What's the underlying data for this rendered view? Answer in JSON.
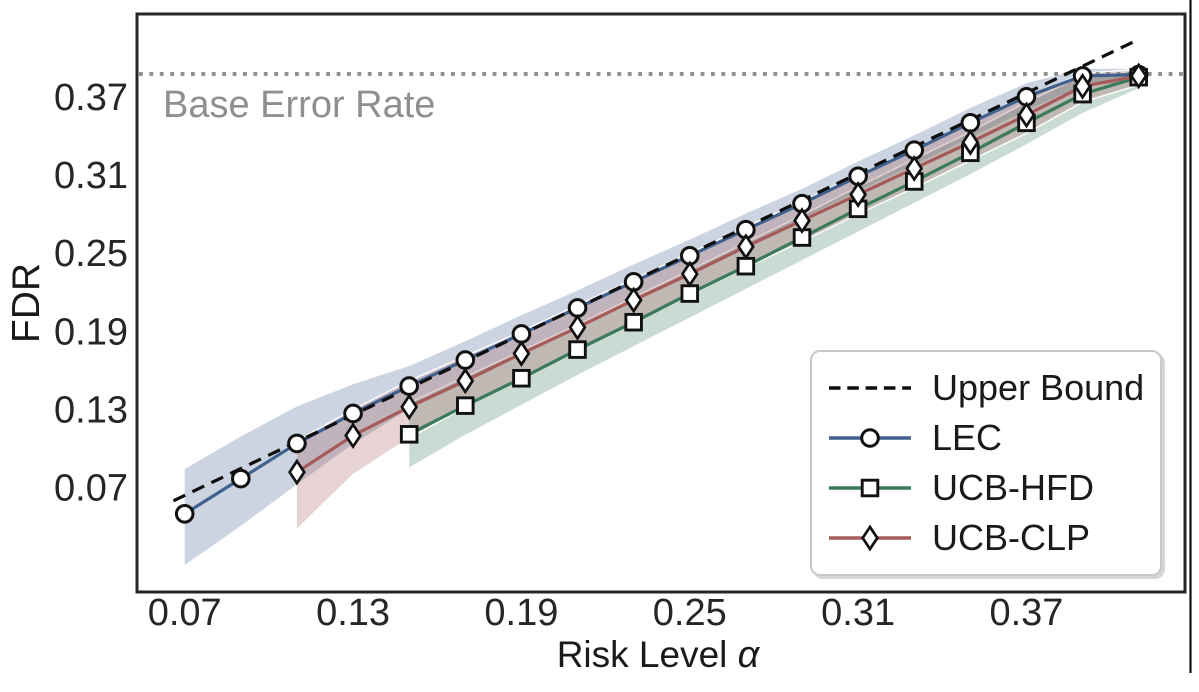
{
  "chart_data": {
    "type": "line",
    "title": "",
    "xlabel": {
      "text": "Risk Level α",
      "prefix": "Risk Level ",
      "symbol": "α"
    },
    "ylabel": "FDR",
    "xlim": [
      0.053,
      0.4265
    ],
    "ylim": [
      -0.01,
      0.4335
    ],
    "grid": false,
    "xticks": [
      {
        "value": 0.07,
        "label": "0.07"
      },
      {
        "value": 0.13,
        "label": "0.13"
      },
      {
        "value": 0.19,
        "label": "0.19"
      },
      {
        "value": 0.25,
        "label": "0.25"
      },
      {
        "value": 0.31,
        "label": "0.31"
      },
      {
        "value": 0.37,
        "label": "0.37"
      }
    ],
    "yticks": [
      {
        "value": 0.37,
        "label": "0.37"
      },
      {
        "value": 0.31,
        "label": "0.31"
      },
      {
        "value": 0.25,
        "label": "0.25"
      },
      {
        "value": 0.19,
        "label": "0.19"
      },
      {
        "value": 0.13,
        "label": "0.13"
      },
      {
        "value": 0.07,
        "label": "0.07"
      }
    ],
    "base_error_rate": {
      "label": "Base Error Rate",
      "value": 0.3875,
      "line_color": "#8e8e8e",
      "label_color": "#8f8f8f"
    },
    "upper_bound": {
      "name": "Upper Bound",
      "x": [
        0.066,
        0.409
      ],
      "y": [
        0.06,
        0.413
      ],
      "color": "#0d0d0d",
      "style": "dashed"
    },
    "series": [
      {
        "name": "LEC",
        "marker": "circle",
        "color": "#40618e",
        "x": [
          0.07,
          0.09,
          0.11,
          0.13,
          0.15,
          0.17,
          0.19,
          0.21,
          0.23,
          0.25,
          0.27,
          0.29,
          0.31,
          0.33,
          0.35,
          0.37,
          0.39,
          0.41
        ],
        "y": [
          0.05,
          0.077,
          0.104,
          0.127,
          0.148,
          0.168,
          0.188,
          0.208,
          0.228,
          0.248,
          0.268,
          0.288,
          0.309,
          0.329,
          0.35,
          0.37,
          0.386,
          0.387
        ],
        "band_lo": [
          0.01,
          0.04,
          0.072,
          0.103,
          0.13,
          0.152,
          0.173,
          0.194,
          0.215,
          0.235,
          0.255,
          0.276,
          0.297,
          0.317,
          0.338,
          0.359,
          0.378,
          0.381
        ],
        "band_hi": [
          0.085,
          0.11,
          0.133,
          0.15,
          0.164,
          0.183,
          0.203,
          0.222,
          0.242,
          0.261,
          0.281,
          0.3,
          0.321,
          0.341,
          0.362,
          0.381,
          0.392,
          0.392
        ]
      },
      {
        "name": "UCB-HFD",
        "marker": "square",
        "color": "#3b7a5b",
        "x": [
          0.15,
          0.17,
          0.19,
          0.21,
          0.23,
          0.25,
          0.27,
          0.29,
          0.31,
          0.33,
          0.35,
          0.37,
          0.39,
          0.41
        ],
        "y": [
          0.111,
          0.133,
          0.154,
          0.176,
          0.197,
          0.219,
          0.24,
          0.262,
          0.284,
          0.305,
          0.327,
          0.35,
          0.372,
          0.385
        ],
        "band_lo": [
          0.085,
          0.11,
          0.133,
          0.156,
          0.178,
          0.2,
          0.222,
          0.244,
          0.266,
          0.288,
          0.31,
          0.333,
          0.357,
          0.376
        ],
        "band_hi": [
          0.135,
          0.155,
          0.175,
          0.195,
          0.216,
          0.237,
          0.258,
          0.279,
          0.301,
          0.322,
          0.343,
          0.366,
          0.386,
          0.39
        ]
      },
      {
        "name": "UCB-CLP",
        "marker": "diamond",
        "color": "#a65b5b",
        "x": [
          0.11,
          0.13,
          0.15,
          0.17,
          0.19,
          0.21,
          0.23,
          0.25,
          0.27,
          0.29,
          0.31,
          0.33,
          0.35,
          0.37,
          0.39,
          0.41
        ],
        "y": [
          0.082,
          0.11,
          0.132,
          0.152,
          0.173,
          0.193,
          0.214,
          0.234,
          0.255,
          0.275,
          0.295,
          0.315,
          0.335,
          0.356,
          0.378,
          0.386
        ],
        "band_lo": [
          0.038,
          0.08,
          0.108,
          0.132,
          0.155,
          0.176,
          0.197,
          0.218,
          0.239,
          0.259,
          0.28,
          0.3,
          0.321,
          0.342,
          0.366,
          0.379
        ],
        "band_hi": [
          0.106,
          0.13,
          0.152,
          0.171,
          0.19,
          0.21,
          0.23,
          0.25,
          0.27,
          0.29,
          0.31,
          0.33,
          0.35,
          0.369,
          0.388,
          0.391
        ]
      }
    ],
    "legend": {
      "position": "lower right",
      "items": [
        {
          "key": "upper_bound",
          "label": "Upper Bound"
        },
        {
          "key": "lec",
          "label": "LEC"
        },
        {
          "key": "ucb_hfd",
          "label": "UCB-HFD"
        },
        {
          "key": "ucb_clp",
          "label": "UCB-CLP"
        }
      ]
    },
    "styles": {
      "tick_color": "#262626",
      "spine_color": "#262626",
      "band_opacity": 0.27,
      "marker_fill": "#ffffff",
      "marker_edge": "#111111"
    }
  }
}
